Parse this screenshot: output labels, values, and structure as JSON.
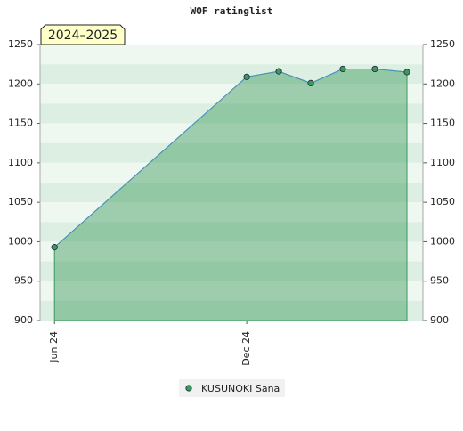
{
  "chart_data": {
    "type": "line",
    "title": "WOF ratinglist",
    "annotation": "2024–2025",
    "x": [
      0,
      6,
      7,
      8,
      9,
      10,
      11
    ],
    "xlim": [
      -0.45,
      11.5
    ],
    "xticks": [
      {
        "value": 0,
        "label": "Jun 24"
      },
      {
        "value": 6,
        "label": "Dec 24"
      }
    ],
    "ylim": [
      900,
      1250
    ],
    "yticks": [
      900,
      950,
      1000,
      1050,
      1100,
      1150,
      1200,
      1250
    ],
    "series": [
      {
        "name": "KUSUNOKI Sana",
        "color": "#3a9a5a",
        "values": [
          993,
          1209,
          1216,
          1201,
          1219,
          1219,
          1215
        ]
      }
    ],
    "grid": true
  }
}
